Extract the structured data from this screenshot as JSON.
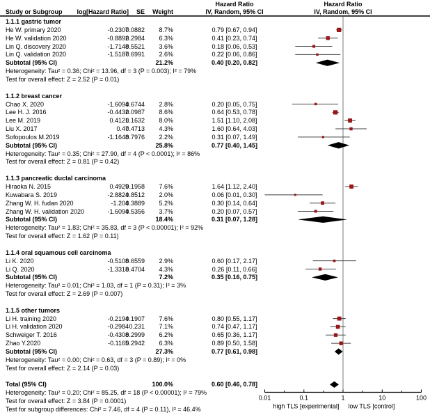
{
  "chart_data": {
    "type": "scatter",
    "subtype": "forest-plot",
    "effect_measure": "Hazard Ratio",
    "model_label": "IV, Random, 95% CI",
    "columns": {
      "study": "Study or Subgroup",
      "loghr": "log[Hazard Ratio]",
      "se": "SE",
      "weight": "Weight",
      "ci_header_line1": "Hazard Ratio",
      "ci_header_line2": "IV, Random, 95% CI",
      "plot_header_line1": "Hazard Ratio",
      "plot_header_line2": "IV, Random, 95% CI"
    },
    "axis": {
      "scale": "log",
      "xlim": [
        0.01,
        100
      ],
      "tick_values": [
        0.01,
        0.1,
        1,
        10,
        100
      ],
      "tick_labels": [
        "0.01",
        "0.1",
        "1",
        "10",
        "100"
      ],
      "minor_tick_values": [
        0.0316,
        0.316,
        3.16,
        31.6
      ],
      "caption_left": "high TLS [experimental]",
      "caption_right": "low TLS [control]"
    },
    "colors": {
      "marker": "#9a1515",
      "ci_line": "#404040",
      "diamond": "#000000",
      "reference_line": "#7a7a7a",
      "axis": "#000000",
      "text": "#000000"
    },
    "groups": [
      {
        "name": "1.1.1 gastric tumor",
        "studies": [
          {
            "study": "He W. primary 2020",
            "loghr": "-0.2307",
            "se": "0.0882",
            "weight": "8.7%",
            "ci_text": "0.79 [0.67, 0.94]",
            "hr": 0.79,
            "lo": 0.67,
            "hi": 0.94
          },
          {
            "study": "He W. validation 2020",
            "loghr": "-0.8892",
            "se": "0.2984",
            "weight": "6.3%",
            "ci_text": "0.41 [0.23, 0.74]",
            "hr": 0.41,
            "lo": 0.23,
            "hi": 0.74
          },
          {
            "study": "Lin Q. discovery 2020",
            "loghr": "-1.7148",
            "se": "0.5521",
            "weight": "3.6%",
            "ci_text": "0.18 [0.06, 0.53]",
            "hr": 0.18,
            "lo": 0.06,
            "hi": 0.53
          },
          {
            "study": "Lin Q. validation 2020",
            "loghr": "-1.5187",
            "se": "0.6991",
            "weight": "2.6%",
            "ci_text": "0.22 [0.06, 0.86]",
            "hr": 0.22,
            "lo": 0.06,
            "hi": 0.86
          }
        ],
        "subtotal": {
          "label": "Subtotal (95% CI)",
          "weight": "21.2%",
          "ci_text": "0.40 [0.20, 0.82]",
          "hr": 0.4,
          "lo": 0.2,
          "hi": 0.82
        },
        "heterogeneity": "Heterogeneity: Tau² = 0.36; Chi² = 13.96, df = 3 (P = 0.003); I² = 79%",
        "overall_effect": "Test for overall effect: Z = 2.52 (P = 0.01)"
      },
      {
        "name": "1.1.2 breast cancer",
        "studies": [
          {
            "study": "Chao X. 2020",
            "loghr": "-1.6094",
            "se": "0.6744",
            "weight": "2.8%",
            "ci_text": "0.20 [0.05, 0.75]",
            "hr": 0.2,
            "lo": 0.05,
            "hi": 0.75
          },
          {
            "study": "Lee H. J. 2016",
            "loghr": "-0.4432",
            "se": "0.0987",
            "weight": "8.6%",
            "ci_text": "0.64 [0.53, 0.78]",
            "hr": 0.64,
            "lo": 0.53,
            "hi": 0.78
          },
          {
            "study": "Lee M. 2019",
            "loghr": "0.4121",
            "se": "0.1632",
            "weight": "8.0%",
            "ci_text": "1.51 [1.10, 2.08]",
            "hr": 1.51,
            "lo": 1.1,
            "hi": 2.08
          },
          {
            "study": "Liu X. 2017",
            "loghr": "0.47",
            "se": "0.4713",
            "weight": "4.3%",
            "ci_text": "1.60 [0.64, 4.03]",
            "hr": 1.6,
            "lo": 0.64,
            "hi": 4.03
          },
          {
            "study": "Sofopoulos M.2019",
            "loghr": "-1.1648",
            "se": "0.7976",
            "weight": "2.2%",
            "ci_text": "0.31 [0.07, 1.49]",
            "hr": 0.31,
            "lo": 0.07,
            "hi": 1.49
          }
        ],
        "subtotal": {
          "label": "Subtotal (95% CI)",
          "weight": "25.8%",
          "ci_text": "0.77 [0.40, 1.45]",
          "hr": 0.77,
          "lo": 0.4,
          "hi": 1.45
        },
        "heterogeneity": "Heterogeneity: Tau² = 0.35; Chi² = 27.90, df = 4 (P < 0.0001); I² = 86%",
        "overall_effect": "Test for overall effect: Z = 0.81 (P = 0.42)"
      },
      {
        "name": "1.1.3 pancreatic ductal carcinoma",
        "studies": [
          {
            "study": "Hiraoka N. 2015",
            "loghr": "0.4929",
            "se": "0.1958",
            "weight": "7.6%",
            "ci_text": "1.64 [1.12, 2.40]",
            "hr": 1.64,
            "lo": 1.12,
            "hi": 2.4
          },
          {
            "study": "Kuwabara S. 2019",
            "loghr": "-2.8824",
            "se": "0.8512",
            "weight": "2.0%",
            "ci_text": "0.06 [0.01, 0.30]",
            "hr": 0.06,
            "lo": 0.01,
            "hi": 0.3
          },
          {
            "study": "Zhang W. H. fudan 2020",
            "loghr": "-1.204",
            "se": "0.3889",
            "weight": "5.2%",
            "ci_text": "0.30 [0.14, 0.64]",
            "hr": 0.3,
            "lo": 0.14,
            "hi": 0.64
          },
          {
            "study": "Zhang W. H. validation 2020",
            "loghr": "-1.6094",
            "se": "0.5356",
            "weight": "3.7%",
            "ci_text": "0.20 [0.07, 0.57]",
            "hr": 0.2,
            "lo": 0.07,
            "hi": 0.57
          }
        ],
        "subtotal": {
          "label": "Subtotal (95% CI)",
          "weight": "18.4%",
          "ci_text": "0.31 [0.07, 1.28]",
          "hr": 0.31,
          "lo": 0.07,
          "hi": 1.28
        },
        "heterogeneity": "Heterogeneity: Tau² = 1.83; Chi² = 35.83, df = 3 (P < 0.00001); I² = 92%",
        "overall_effect": "Test for overall effect: Z = 1.62 (P = 0.11)"
      },
      {
        "name": "1.1.4 oral squamous cell carcinoma",
        "studies": [
          {
            "study": "Li K. 2020",
            "loghr": "-0.5108",
            "se": "0.6559",
            "weight": "2.9%",
            "ci_text": "0.60 [0.17, 2.17]",
            "hr": 0.6,
            "lo": 0.17,
            "hi": 2.17
          },
          {
            "study": "Li Q. 2020",
            "loghr": "-1.3318",
            "se": "0.4704",
            "weight": "4.3%",
            "ci_text": "0.26 [0.11, 0.66]",
            "hr": 0.26,
            "lo": 0.11,
            "hi": 0.66
          }
        ],
        "subtotal": {
          "label": "Subtotal (95% CI)",
          "weight": "7.2%",
          "ci_text": "0.35 [0.16, 0.75]",
          "hr": 0.35,
          "lo": 0.16,
          "hi": 0.75
        },
        "heterogeneity": "Heterogeneity: Tau² = 0.01; Chi² = 1.03, df = 1 (P = 0.31); I² = 3%",
        "overall_effect": "Test for overall effect: Z = 2.69 (P = 0.007)"
      },
      {
        "name": "1.1.5 other tumors",
        "studies": [
          {
            "study": "Li H. training 2020",
            "loghr": "-0.2194",
            "se": "0.1907",
            "weight": "7.6%",
            "ci_text": "0.80 [0.55, 1.17]",
            "hr": 0.8,
            "lo": 0.55,
            "hi": 1.17
          },
          {
            "study": "Li H. validation 2020",
            "loghr": "-0.2984",
            "se": "0.231",
            "weight": "7.1%",
            "ci_text": "0.74 [0.47, 1.17]",
            "hr": 0.74,
            "lo": 0.47,
            "hi": 1.17
          },
          {
            "study": "Schweiger T. 2016",
            "loghr": "-0.4308",
            "se": "0.2999",
            "weight": "6.2%",
            "ci_text": "0.65 [0.36, 1.17]",
            "hr": 0.65,
            "lo": 0.36,
            "hi": 1.17
          },
          {
            "study": "Zhao Y.2020",
            "loghr": "-0.1165",
            "se": "0.2942",
            "weight": "6.3%",
            "ci_text": "0.89 [0.50, 1.58]",
            "hr": 0.89,
            "lo": 0.5,
            "hi": 1.58
          }
        ],
        "subtotal": {
          "label": "Subtotal (95% CI)",
          "weight": "27.3%",
          "ci_text": "0.77 [0.61, 0.98]",
          "hr": 0.77,
          "lo": 0.61,
          "hi": 0.98
        },
        "heterogeneity": "Heterogeneity: Tau² = 0.00; Chi² = 0.63, df = 3 (P = 0.89); I² = 0%",
        "overall_effect": "Test for overall effect: Z = 2.14 (P = 0.03)"
      }
    ],
    "total": {
      "label": "Total (95% CI)",
      "weight": "100.0%",
      "ci_text": "0.60 [0.46, 0.78]",
      "hr": 0.6,
      "lo": 0.46,
      "hi": 0.78,
      "heterogeneity": "Heterogeneity: Tau² = 0.20; Chi² = 85.25, df = 18 (P < 0.00001); I² = 79%",
      "overall_effect": "Test for overall effect: Z = 3.84 (P = 0.0001)",
      "subgroup_differences": "Test for subgroup differences: Chi² = 7.46, df = 4 (P = 0.11), I² = 46.4%"
    }
  }
}
